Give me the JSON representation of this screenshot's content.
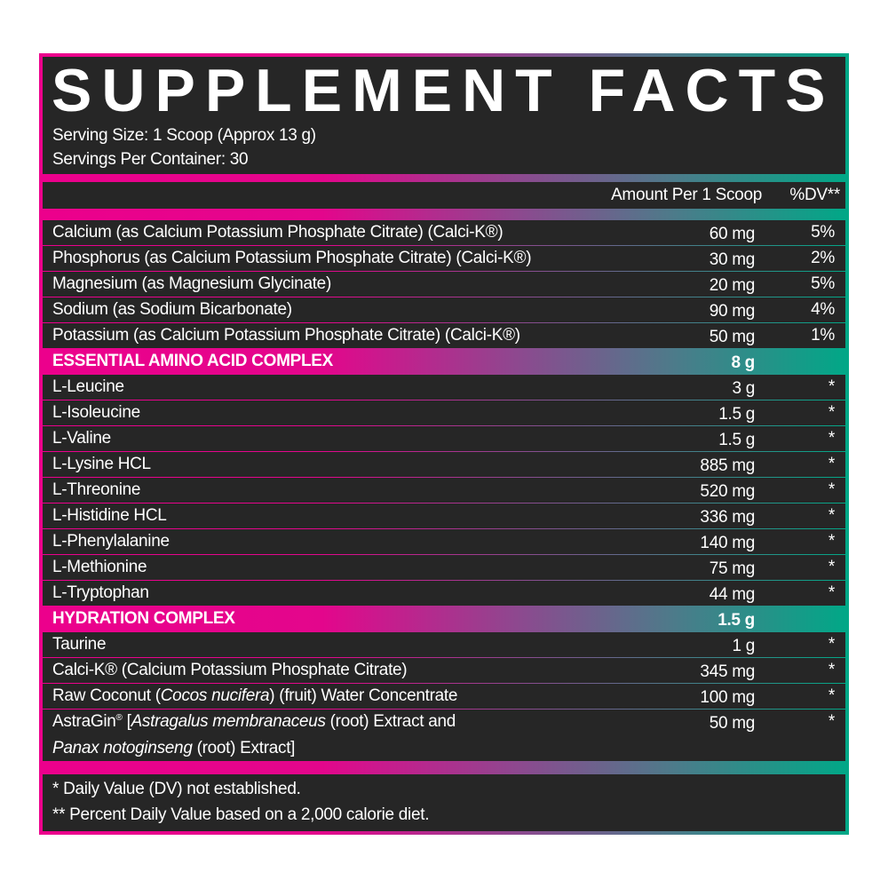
{
  "title": "SUPPLEMENT FACTS",
  "serving_size": "Serving Size: 1 Scoop (Approx 13 g)",
  "servings_per_container": "Servings Per Container: 30",
  "header": {
    "amount": "Amount Per 1 Scoop",
    "dv": "%DV**"
  },
  "colors": {
    "pink": "#ec008c",
    "teal": "#00a887",
    "panel": "#262626"
  },
  "rows": [
    {
      "name": "Calcium (as Calcium Potassium Phosphate Citrate) (Calci-K®)",
      "amount": "60 mg",
      "dv": "5%"
    },
    {
      "name": "Phosphorus (as Calcium Potassium Phosphate Citrate) (Calci-K®)",
      "amount": "30 mg",
      "dv": "2%"
    },
    {
      "name": "Magnesium (as Magnesium Glycinate)",
      "amount": "20 mg",
      "dv": "5%"
    },
    {
      "name": "Sodium (as Sodium Bicarbonate)",
      "amount": "90 mg",
      "dv": "4%"
    },
    {
      "name": "Potassium (as Calcium Potassium Phosphate Citrate) (Calci-K®)",
      "amount": "50 mg",
      "dv": "1%"
    },
    {
      "section": true,
      "name": "ESSENTIAL AMINO ACID COMPLEX",
      "amount": "8 g",
      "dv": ""
    },
    {
      "name": "L-Leucine",
      "amount": "3 g",
      "dv": "*"
    },
    {
      "name": "L-Isoleucine",
      "amount": "1.5 g",
      "dv": "*"
    },
    {
      "name": "L-Valine",
      "amount": "1.5 g",
      "dv": "*"
    },
    {
      "name": "L-Lysine HCL",
      "amount": "885 mg",
      "dv": "*"
    },
    {
      "name": "L-Threonine",
      "amount": "520 mg",
      "dv": "*"
    },
    {
      "name": "L-Histidine HCL",
      "amount": "336 mg",
      "dv": "*"
    },
    {
      "name": "L-Phenylalanine",
      "amount": "140 mg",
      "dv": "*"
    },
    {
      "name": "L-Methionine",
      "amount": "75 mg",
      "dv": "*"
    },
    {
      "name": "L-Tryptophan",
      "amount": "44 mg",
      "dv": "*"
    },
    {
      "section": true,
      "name": "HYDRATION COMPLEX",
      "amount": "1.5 g",
      "dv": ""
    },
    {
      "name": "Taurine",
      "amount": "1 g",
      "dv": "*"
    },
    {
      "name": "Calci-K® (Calcium Potassium Phosphate Citrate)",
      "amount": "345 mg",
      "dv": "*"
    },
    {
      "name_html": "Raw Coconut (<i>Cocos nucifera</i>) (fruit) Water Concentrate",
      "name": "Raw Coconut (Cocos nucifera) (fruit) Water Concentrate",
      "amount": "100 mg",
      "dv": "*"
    },
    {
      "tall": true,
      "name": "AstraGin® [Astragalus membranaceus (root) Extract and",
      "name_html": "AstraGin® [<i>Astragalus membranaceus</i> (root) Extract and",
      "name2": "Panax notoginseng (root) Extract]",
      "name2_html": "<i>Panax notoginseng</i> (root) Extract]",
      "amount": "50 mg",
      "dv": "*"
    }
  ],
  "footnotes": [
    "* Daily Value (DV) not established.",
    "** Percent Daily Value based on a 2,000 calorie diet."
  ]
}
